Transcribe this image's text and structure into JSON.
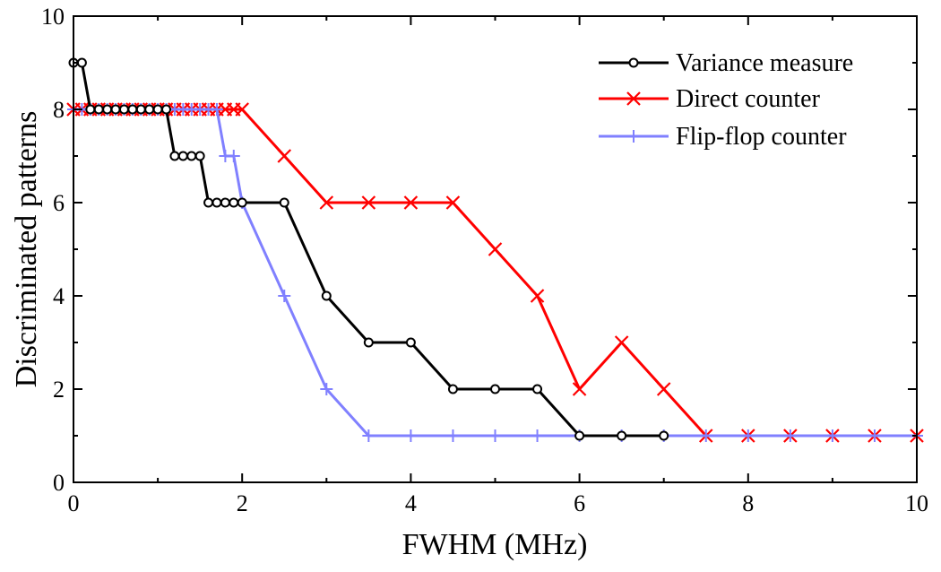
{
  "chart_data": {
    "type": "line",
    "title": "",
    "xlabel": "FWHM (MHz)",
    "ylabel": "Discriminated patterns",
    "xlim": [
      0,
      10
    ],
    "ylim": [
      0,
      10
    ],
    "xticks": [
      0,
      2,
      4,
      6,
      8,
      10
    ],
    "yticks": [
      0,
      2,
      4,
      6,
      8,
      10
    ],
    "xtick_labels": [
      "0",
      "2",
      "4",
      "6",
      "8",
      "10"
    ],
    "ytick_labels": [
      "0",
      "2",
      "4",
      "6",
      "8",
      "10"
    ],
    "grid": false,
    "legend_position": "top-right",
    "series": [
      {
        "name": "Variance measure",
        "color": "#000000",
        "marker": "circle",
        "x": [
          0,
          0.1,
          0.2,
          0.3,
          0.4,
          0.5,
          0.6,
          0.7,
          0.8,
          0.9,
          1.0,
          1.1,
          1.2,
          1.3,
          1.4,
          1.5,
          1.6,
          1.7,
          1.8,
          1.9,
          2.0,
          2.5,
          3.0,
          3.5,
          4.0,
          4.5,
          5.0,
          5.5,
          6.0,
          6.5,
          7.0
        ],
        "y": [
          9,
          9,
          8,
          8,
          8,
          8,
          8,
          8,
          8,
          8,
          8,
          8,
          7,
          7,
          7,
          7,
          6,
          6,
          6,
          6,
          6,
          6,
          4,
          3,
          3,
          2,
          2,
          2,
          1,
          1,
          1
        ]
      },
      {
        "name": "Direct counter",
        "color": "#ff0000",
        "marker": "x",
        "x": [
          0,
          0.1,
          0.2,
          0.3,
          0.4,
          0.5,
          0.6,
          0.7,
          0.8,
          0.9,
          1.0,
          1.1,
          1.2,
          1.3,
          1.4,
          1.5,
          1.6,
          1.7,
          1.8,
          1.9,
          2.0,
          2.5,
          3.0,
          3.5,
          4.0,
          4.5,
          5.0,
          5.5,
          6.0,
          6.5,
          7.0,
          7.5,
          8.0,
          8.5,
          9.0,
          9.5,
          10.0
        ],
        "y": [
          8,
          8,
          8,
          8,
          8,
          8,
          8,
          8,
          8,
          8,
          8,
          8,
          8,
          8,
          8,
          8,
          8,
          8,
          8,
          8,
          8,
          7,
          6,
          6,
          6,
          6,
          5,
          4,
          2,
          3,
          2,
          1,
          1,
          1,
          1,
          1,
          1
        ]
      },
      {
        "name": "Flip-flop counter",
        "color": "#8080ff",
        "marker": "plus",
        "x": [
          0,
          0.1,
          0.2,
          0.3,
          0.4,
          0.5,
          0.6,
          0.7,
          0.8,
          0.9,
          1.0,
          1.1,
          1.2,
          1.3,
          1.4,
          1.5,
          1.6,
          1.7,
          1.8,
          1.9,
          2.0,
          2.5,
          3.0,
          3.5,
          4.0,
          4.5,
          5.0,
          5.5,
          6.0,
          6.5,
          7.0,
          7.5,
          8.0,
          8.5,
          9.0,
          9.5,
          10.0
        ],
        "y": [
          8,
          8,
          8,
          8,
          8,
          8,
          8,
          8,
          8,
          8,
          8,
          8,
          8,
          8,
          8,
          8,
          8,
          8,
          7,
          7,
          6,
          4,
          2,
          1,
          1,
          1,
          1,
          1,
          1,
          1,
          1,
          1,
          1,
          1,
          1,
          1,
          1
        ]
      }
    ]
  }
}
